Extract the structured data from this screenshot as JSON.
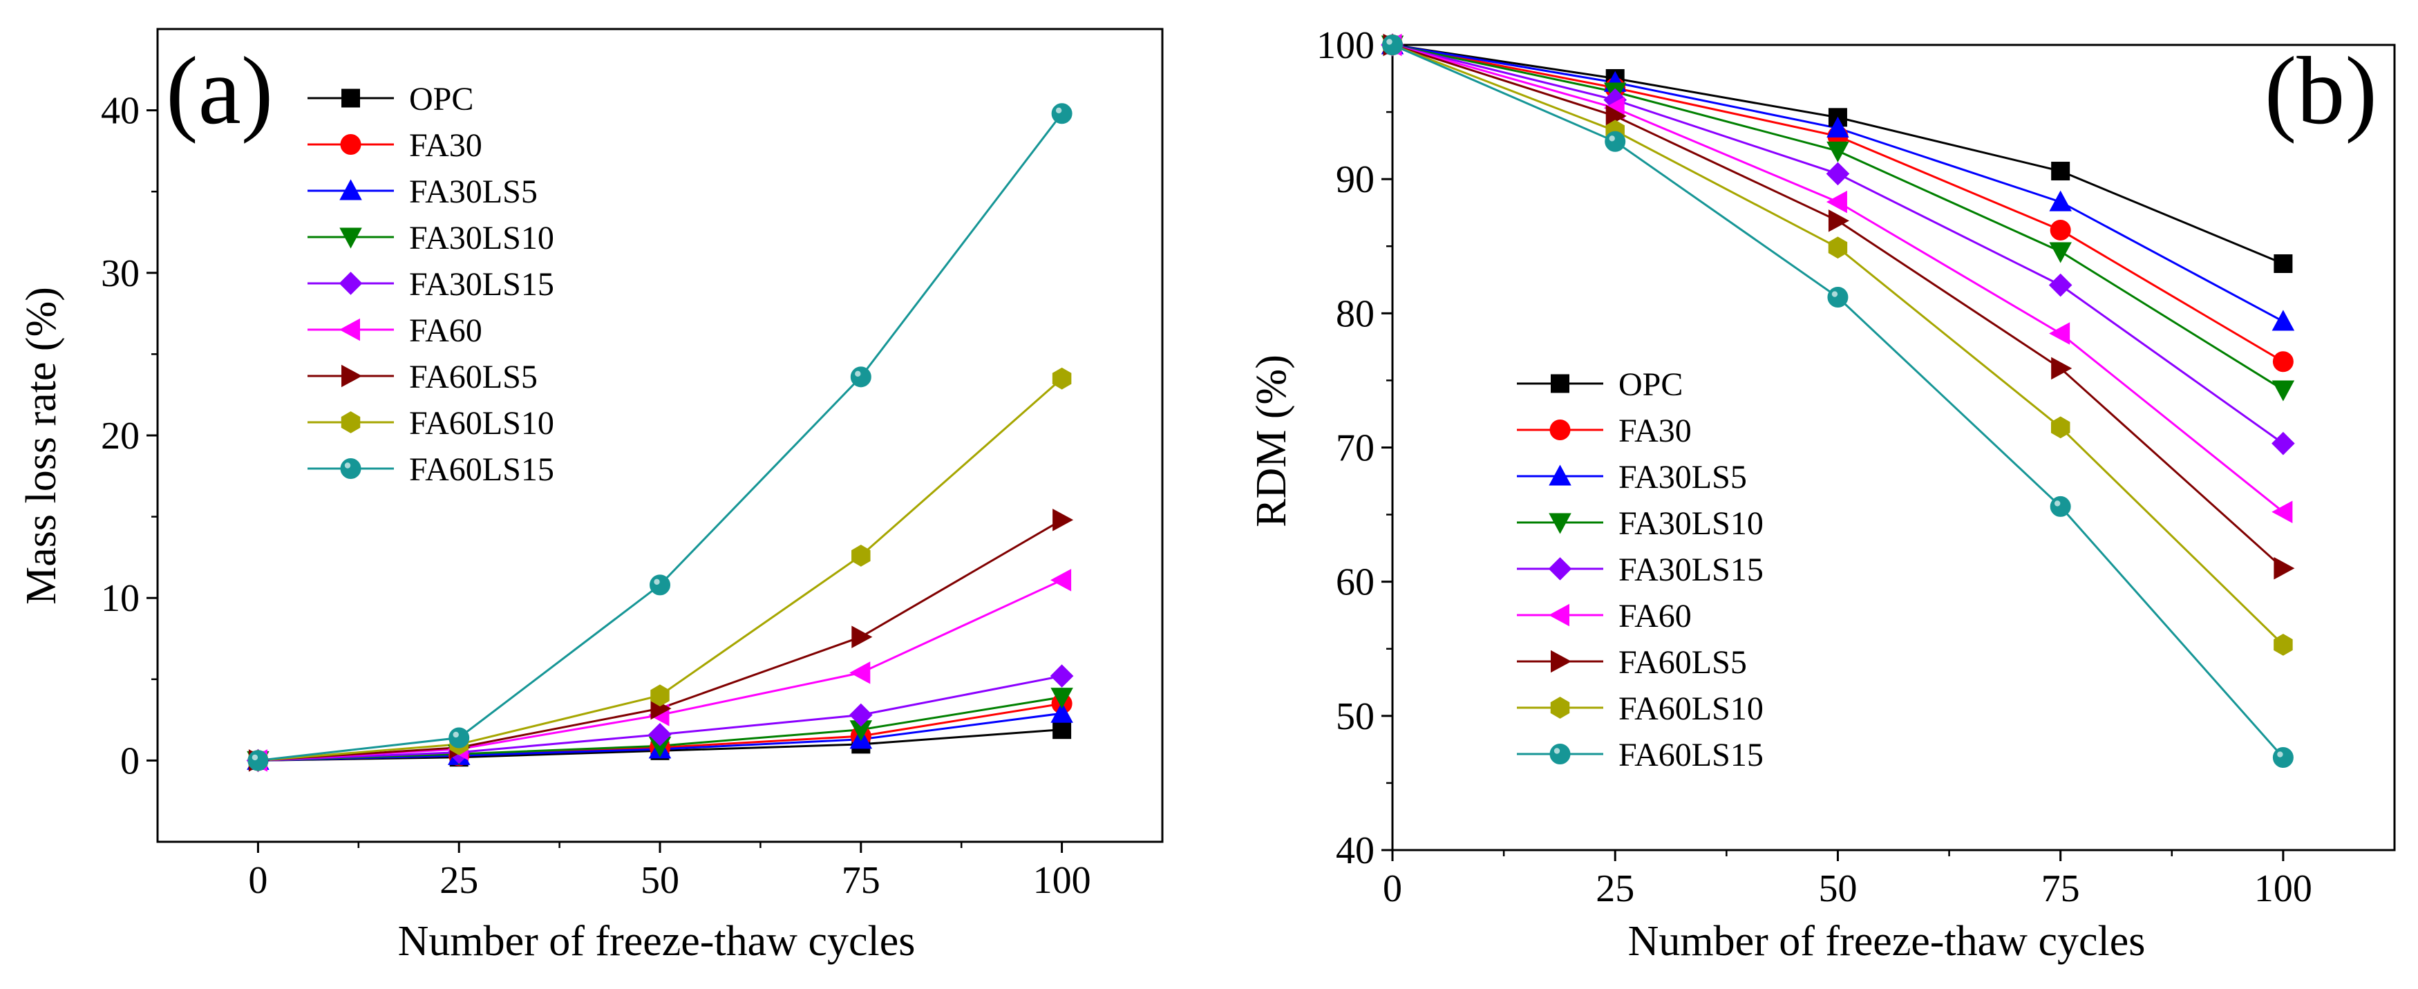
{
  "chart_data": [
    {
      "id": "a",
      "type": "line",
      "panel_label": "(a)",
      "title": "",
      "xlabel": "Number of freeze-thaw cycles",
      "ylabel": "Mass loss rate (%)",
      "xlim": [
        -12.5,
        112.5
      ],
      "ylim": [
        -5,
        45
      ],
      "xticks": [
        0,
        25,
        50,
        75,
        100
      ],
      "yticks": [
        0,
        10,
        20,
        30,
        40
      ],
      "legend_position": "top-left",
      "x": [
        0,
        25,
        50,
        75,
        100
      ],
      "series": [
        {
          "name": "OPC",
          "color": "#000000",
          "marker": "square",
          "values": [
            0,
            0.2,
            0.6,
            1.0,
            1.9
          ]
        },
        {
          "name": "FA30",
          "color": "#ff0000",
          "marker": "circle",
          "values": [
            0,
            0.3,
            0.8,
            1.5,
            3.5
          ]
        },
        {
          "name": "FA30LS5",
          "color": "#0000ff",
          "marker": "triangle-up",
          "values": [
            0,
            0.3,
            0.7,
            1.3,
            2.9
          ]
        },
        {
          "name": "FA30LS10",
          "color": "#008000",
          "marker": "triangle-down",
          "values": [
            0,
            0.4,
            0.9,
            1.9,
            3.9
          ]
        },
        {
          "name": "FA30LS15",
          "color": "#8b00ff",
          "marker": "diamond",
          "values": [
            0,
            0.5,
            1.6,
            2.8,
            5.2
          ]
        },
        {
          "name": "FA60",
          "color": "#ff00ff",
          "marker": "triangle-left",
          "values": [
            0,
            0.7,
            2.8,
            5.4,
            11.1
          ]
        },
        {
          "name": "FA60LS5",
          "color": "#800000",
          "marker": "triangle-right",
          "values": [
            0,
            0.8,
            3.2,
            7.6,
            14.8
          ]
        },
        {
          "name": "FA60LS10",
          "color": "#a6a600",
          "marker": "hexagon",
          "values": [
            0,
            1.0,
            4.0,
            12.6,
            23.5
          ]
        },
        {
          "name": "FA60LS15",
          "color": "#169696",
          "marker": "sphere",
          "values": [
            0,
            1.4,
            10.8,
            23.6,
            39.8
          ]
        }
      ]
    },
    {
      "id": "b",
      "type": "line",
      "panel_label": "(b)",
      "title": "",
      "xlabel": "Number of freeze-thaw cycles",
      "ylabel": "RDM (%)",
      "xlim": [
        0,
        112.5
      ],
      "ylim": [
        40,
        100
      ],
      "xticks": [
        0,
        25,
        50,
        75,
        100
      ],
      "yticks": [
        40,
        50,
        60,
        70,
        80,
        90,
        100
      ],
      "legend_position": "center-left",
      "x": [
        0,
        25,
        50,
        75,
        100
      ],
      "series": [
        {
          "name": "OPC",
          "color": "#000000",
          "marker": "square",
          "values": [
            100,
            97.5,
            94.6,
            90.6,
            83.7
          ]
        },
        {
          "name": "FA30",
          "color": "#ff0000",
          "marker": "circle",
          "values": [
            100,
            96.8,
            93.2,
            86.2,
            76.4
          ]
        },
        {
          "name": "FA30LS5",
          "color": "#0000ff",
          "marker": "triangle-up",
          "values": [
            100,
            97.2,
            93.8,
            88.3,
            79.4
          ]
        },
        {
          "name": "FA30LS10",
          "color": "#008000",
          "marker": "triangle-down",
          "values": [
            100,
            96.5,
            92.1,
            84.6,
            74.3
          ]
        },
        {
          "name": "FA30LS15",
          "color": "#8b00ff",
          "marker": "diamond",
          "values": [
            100,
            95.9,
            90.4,
            82.1,
            70.3
          ]
        },
        {
          "name": "FA60",
          "color": "#ff00ff",
          "marker": "triangle-left",
          "values": [
            100,
            95.3,
            88.3,
            78.5,
            65.2
          ]
        },
        {
          "name": "FA60LS5",
          "color": "#800000",
          "marker": "triangle-right",
          "values": [
            100,
            94.7,
            86.9,
            75.9,
            61.0
          ]
        },
        {
          "name": "FA60LS10",
          "color": "#a6a600",
          "marker": "hexagon",
          "values": [
            100,
            93.6,
            84.9,
            71.5,
            55.3
          ]
        },
        {
          "name": "FA60LS15",
          "color": "#169696",
          "marker": "sphere",
          "values": [
            100,
            92.8,
            81.2,
            65.6,
            46.9
          ]
        }
      ]
    }
  ]
}
